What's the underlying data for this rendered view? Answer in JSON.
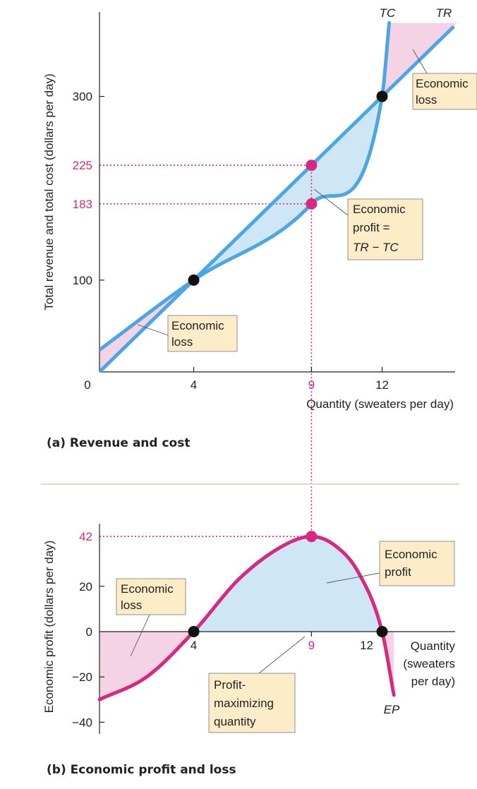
{
  "chart_data": [
    {
      "type": "line",
      "panel": "a",
      "caption": "(a) Revenue and cost",
      "xlabel": "Quantity (sweaters per day)",
      "ylabel": "Total revenue and total cost (dollars per day)",
      "x_ticks": [
        "0",
        "4",
        "9",
        "12"
      ],
      "y_ticks": [
        "100",
        "300"
      ],
      "y_highlight_ticks": [
        "225",
        "183"
      ],
      "xlim": [
        0,
        15
      ],
      "ylim": [
        0,
        380
      ],
      "series": [
        {
          "name": "TR",
          "x": [
            0,
            4,
            9,
            12,
            15
          ],
          "y": [
            0,
            100,
            225,
            300,
            375
          ]
        },
        {
          "name": "TC",
          "x": [
            0,
            4,
            9,
            12,
            12.3
          ],
          "y": [
            24,
            100,
            183,
            300,
            380
          ]
        }
      ],
      "points": [
        {
          "x": 4,
          "y": 100,
          "color": "#111111"
        },
        {
          "x": 12,
          "y": 300,
          "color": "#111111"
        },
        {
          "x": 9,
          "y": 225,
          "color": "#d6297f"
        },
        {
          "x": 9,
          "y": 183,
          "color": "#d6297f"
        }
      ],
      "annotations": [
        {
          "lines": [
            "Economic",
            "loss"
          ]
        },
        {
          "lines": [
            "Economic",
            "profit  =",
            "TR  −  TC"
          ]
        },
        {
          "lines": [
            "Economic",
            "loss"
          ]
        }
      ]
    },
    {
      "type": "line",
      "panel": "b",
      "caption": "(b) Economic profit and loss",
      "xlabel_lines": [
        "Quantity",
        "(sweaters",
        "per day)"
      ],
      "ylabel": "Economic profit (dollars per day)",
      "x_ticks": [
        "4",
        "9",
        "12"
      ],
      "y_ticks": [
        "20",
        "0",
        "−20",
        "−40"
      ],
      "y_highlight_ticks": [
        "42"
      ],
      "xlim": [
        0,
        15
      ],
      "ylim": [
        -45,
        50
      ],
      "series": [
        {
          "name": "EP",
          "x": [
            0,
            2,
            4,
            6,
            8,
            9,
            10,
            11,
            12,
            12.5
          ],
          "y": [
            -30,
            -20,
            0,
            24,
            39,
            42,
            38,
            26,
            0,
            -28
          ]
        }
      ],
      "points": [
        {
          "x": 4,
          "y": 0,
          "color": "#111111"
        },
        {
          "x": 12,
          "y": 0,
          "color": "#111111"
        },
        {
          "x": 9,
          "y": 42,
          "color": "#d6297f"
        }
      ],
      "annotations": [
        {
          "lines": [
            "Economic",
            "loss"
          ]
        },
        {
          "lines": [
            "Economic",
            "profit"
          ]
        },
        {
          "lines": [
            "Profit-",
            "maximizing",
            "quantity"
          ]
        }
      ]
    }
  ],
  "colors": {
    "curve_blue": "#4ba6e3",
    "curve_magenta": "#d6297f",
    "profit_fill": "#cfe6f7",
    "loss_fill": "#f3d3e4",
    "label_box": "#fdecc8",
    "highlight": "#d6297f"
  }
}
